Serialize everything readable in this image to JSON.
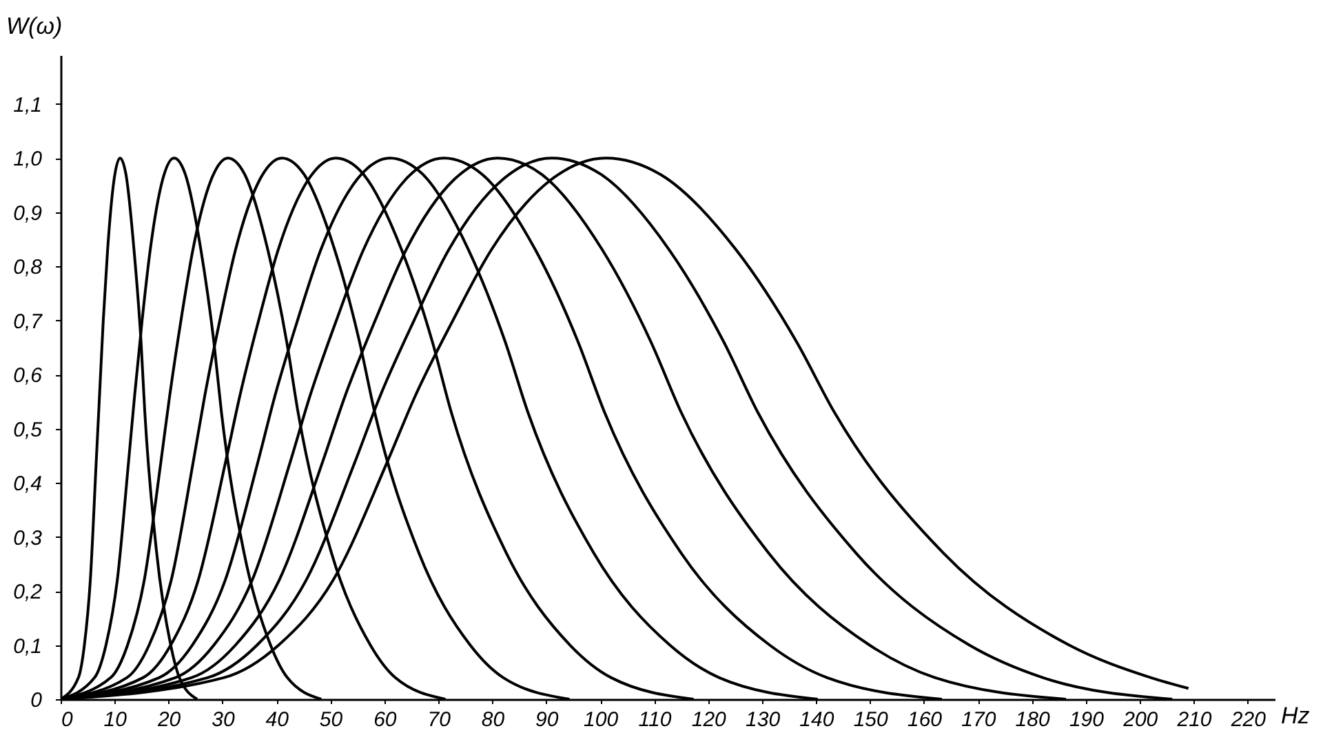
{
  "chart_data": {
    "type": "line",
    "xlabel": "Hz",
    "ylabel": "W(ω)",
    "xlim": [
      0,
      225
    ],
    "ylim": [
      0,
      1.19
    ],
    "xticks": [
      0,
      10,
      20,
      30,
      40,
      50,
      60,
      70,
      80,
      90,
      100,
      110,
      120,
      130,
      140,
      150,
      160,
      170,
      180,
      190,
      200,
      210,
      220
    ],
    "yticks": [
      {
        "value": 0,
        "label": "0"
      },
      {
        "value": 0.1,
        "label": "0,1"
      },
      {
        "value": 0.2,
        "label": "0,2"
      },
      {
        "value": 0.3,
        "label": "0,3"
      },
      {
        "value": 0.4,
        "label": "0,4"
      },
      {
        "value": 0.5,
        "label": "0,5"
      },
      {
        "value": 0.6,
        "label": "0,6"
      },
      {
        "value": 0.7,
        "label": "0,7"
      },
      {
        "value": 0.8,
        "label": "0,8"
      },
      {
        "value": 0.9,
        "label": "0,9"
      },
      {
        "value": 1.0,
        "label": "1,0"
      },
      {
        "value": 1.1,
        "label": "1,1"
      }
    ],
    "grid": false,
    "legend": false,
    "line_style": "solid",
    "series": [
      {
        "color": "#000000",
        "x": [
          0,
          3.3,
          4.4,
          5.5,
          6.6,
          7.2,
          7.9,
          8.7,
          9.9,
          11,
          12.1,
          13.6,
          14.9,
          15.6,
          17.8,
          20.4,
          22,
          25.3
        ],
        "values": [
          0,
          0.04,
          0.1,
          0.22,
          0.44,
          0.56,
          0.7,
          0.83,
          0.96,
          1,
          0.97,
          0.83,
          0.66,
          0.53,
          0.27,
          0.1,
          0.04,
          0
        ]
      },
      {
        "color": "#000000",
        "x": [
          0,
          6.3,
          8.4,
          10.5,
          12.6,
          13.7,
          15.1,
          16.6,
          18.9,
          21,
          23.1,
          26,
          28.4,
          29.8,
          34,
          38.9,
          42,
          48.3
        ],
        "values": [
          0,
          0.04,
          0.1,
          0.22,
          0.44,
          0.56,
          0.7,
          0.83,
          0.96,
          1,
          0.97,
          0.83,
          0.66,
          0.53,
          0.27,
          0.1,
          0.04,
          0
        ]
      },
      {
        "color": "#000000",
        "x": [
          0,
          9.3,
          12.4,
          15.5,
          18.6,
          20.2,
          22.3,
          24.5,
          27.9,
          31,
          34.1,
          38.4,
          41.9,
          44,
          50.2,
          57.4,
          62,
          71.3
        ],
        "values": [
          0,
          0.04,
          0.1,
          0.22,
          0.44,
          0.56,
          0.7,
          0.83,
          0.96,
          1,
          0.97,
          0.83,
          0.66,
          0.53,
          0.27,
          0.1,
          0.04,
          0
        ]
      },
      {
        "color": "#000000",
        "x": [
          0,
          12.3,
          16.4,
          20.5,
          24.6,
          26.7,
          29.5,
          32.4,
          36.9,
          41,
          45.1,
          50.8,
          55.4,
          58.2,
          66.4,
          75.9,
          82,
          94.3
        ],
        "values": [
          0,
          0.04,
          0.1,
          0.22,
          0.44,
          0.56,
          0.7,
          0.83,
          0.96,
          1,
          0.97,
          0.83,
          0.66,
          0.53,
          0.27,
          0.1,
          0.04,
          0
        ]
      },
      {
        "color": "#000000",
        "x": [
          0,
          15.3,
          20.4,
          25.5,
          30.6,
          33.2,
          36.7,
          40.3,
          45.9,
          51,
          56.1,
          63.2,
          68.9,
          72.4,
          82.6,
          94.4,
          102,
          117.3
        ],
        "values": [
          0,
          0.04,
          0.1,
          0.22,
          0.44,
          0.56,
          0.7,
          0.83,
          0.96,
          1,
          0.97,
          0.83,
          0.66,
          0.53,
          0.27,
          0.1,
          0.04,
          0
        ]
      },
      {
        "color": "#000000",
        "x": [
          0,
          18.3,
          24.4,
          30.5,
          36.6,
          39.7,
          43.9,
          48.2,
          54.9,
          61,
          67.1,
          75.6,
          82.4,
          86.6,
          98.8,
          112.9,
          122,
          140.3
        ],
        "values": [
          0,
          0.04,
          0.1,
          0.22,
          0.44,
          0.56,
          0.7,
          0.83,
          0.96,
          1,
          0.97,
          0.83,
          0.66,
          0.53,
          0.27,
          0.1,
          0.04,
          0
        ]
      },
      {
        "color": "#000000",
        "x": [
          0,
          21.3,
          28.4,
          35.5,
          42.6,
          46.2,
          51.1,
          56.1,
          63.9,
          71,
          78.1,
          88,
          95.9,
          100.8,
          115,
          131.4,
          142,
          163.3
        ],
        "values": [
          0,
          0.04,
          0.1,
          0.22,
          0.44,
          0.56,
          0.7,
          0.83,
          0.96,
          1,
          0.97,
          0.83,
          0.66,
          0.53,
          0.27,
          0.1,
          0.04,
          0
        ]
      },
      {
        "color": "#000000",
        "x": [
          0,
          24.3,
          32.4,
          40.5,
          48.6,
          52.7,
          58.3,
          64,
          72.9,
          81,
          89.1,
          100.4,
          109.4,
          115,
          131.2,
          149.9,
          162,
          186.3
        ],
        "values": [
          0,
          0.04,
          0.1,
          0.22,
          0.44,
          0.56,
          0.7,
          0.83,
          0.96,
          1,
          0.97,
          0.83,
          0.66,
          0.53,
          0.27,
          0.1,
          0.04,
          0
        ]
      },
      {
        "color": "#000000",
        "x": [
          0,
          27.3,
          36.4,
          45.5,
          54.6,
          59.2,
          65.5,
          71.9,
          81.9,
          91,
          100.1,
          112.8,
          122.9,
          129.2,
          147.4,
          168.4,
          182,
          206
        ],
        "values": [
          0,
          0.04,
          0.1,
          0.22,
          0.44,
          0.56,
          0.7,
          0.83,
          0.96,
          1,
          0.97,
          0.83,
          0.66,
          0.53,
          0.27,
          0.1,
          0.04,
          0
        ]
      },
      {
        "color": "#000000",
        "x": [
          0,
          30.3,
          40.4,
          50.5,
          60.6,
          65.7,
          72.7,
          79.8,
          90.9,
          101,
          111.1,
          125.2,
          136.4,
          143.4,
          163.6,
          186.9,
          202,
          209
        ],
        "values": [
          0,
          0.04,
          0.1,
          0.22,
          0.44,
          0.56,
          0.7,
          0.83,
          0.96,
          1,
          0.97,
          0.83,
          0.66,
          0.53,
          0.27,
          0.1,
          0.04,
          0.02
        ]
      }
    ]
  }
}
